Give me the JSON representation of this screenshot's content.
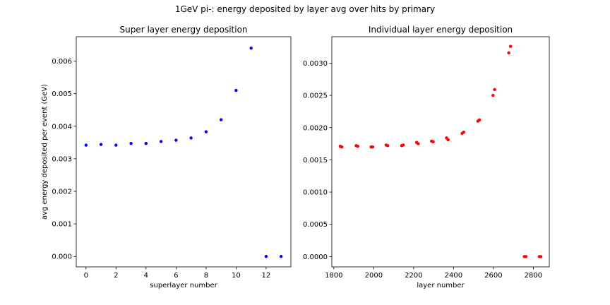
{
  "figure_title": "1GeV pi-: energy deposited by layer avg over hits by primary",
  "chart_data": [
    {
      "type": "scatter",
      "title": "Super layer energy deposition",
      "xlabel": "superlayer number",
      "ylabel": "avg energy deposited per event (GeV)",
      "xlim": [
        -0.65,
        13.65
      ],
      "ylim": [
        -0.00032,
        0.00675
      ],
      "xticks": [
        0,
        2,
        4,
        6,
        8,
        10,
        12
      ],
      "xtick_labels": [
        "0",
        "2",
        "4",
        "6",
        "8",
        "10",
        "12"
      ],
      "yticks": [
        0.0,
        0.001,
        0.002,
        0.003,
        0.004,
        0.005,
        0.006
      ],
      "ytick_labels": [
        "0.000",
        "0.001",
        "0.002",
        "0.003",
        "0.004",
        "0.005",
        "0.006"
      ],
      "grid": false,
      "color": "#0000ff",
      "x": [
        0,
        1,
        2,
        3,
        4,
        5,
        6,
        7,
        8,
        9,
        10,
        11,
        12,
        13
      ],
      "y": [
        0.00342,
        0.00344,
        0.00342,
        0.00347,
        0.00347,
        0.00353,
        0.00357,
        0.00364,
        0.00383,
        0.0042,
        0.0051,
        0.0064,
        0.0,
        0.0
      ]
    },
    {
      "type": "scatter",
      "title": "Individual layer energy deposition",
      "xlabel": "layer number",
      "ylabel": "",
      "xlim": [
        1790,
        2880
      ],
      "ylim": [
        -0.00016,
        0.00341
      ],
      "xticks": [
        1800,
        2000,
        2200,
        2400,
        2600,
        2800
      ],
      "xtick_labels": [
        "1800",
        "2000",
        "2200",
        "2400",
        "2600",
        "2800"
      ],
      "yticks": [
        0.0,
        0.0005,
        0.001,
        0.0015,
        0.002,
        0.0025,
        0.003
      ],
      "ytick_labels": [
        "0.0000",
        "0.0005",
        "0.0010",
        "0.0015",
        "0.0020",
        "0.0025",
        "0.0030"
      ],
      "grid": false,
      "color": "#ff0000",
      "x": [
        1832,
        1840,
        1912,
        1920,
        1987,
        1995,
        2062,
        2070,
        2140,
        2148,
        2215,
        2223,
        2290,
        2298,
        2365,
        2373,
        2443,
        2451,
        2522,
        2530,
        2598,
        2606,
        2677,
        2686,
        2755,
        2763,
        2830,
        2838
      ],
      "y": [
        0.00171,
        0.0017,
        0.00172,
        0.00171,
        0.0017,
        0.0017,
        0.00173,
        0.00172,
        0.00172,
        0.00173,
        0.00177,
        0.00175,
        0.00179,
        0.00178,
        0.00184,
        0.00181,
        0.00191,
        0.00193,
        0.0021,
        0.00212,
        0.0025,
        0.00259,
        0.00316,
        0.00326,
        0.0,
        0.0,
        0.0,
        0.0
      ]
    }
  ]
}
